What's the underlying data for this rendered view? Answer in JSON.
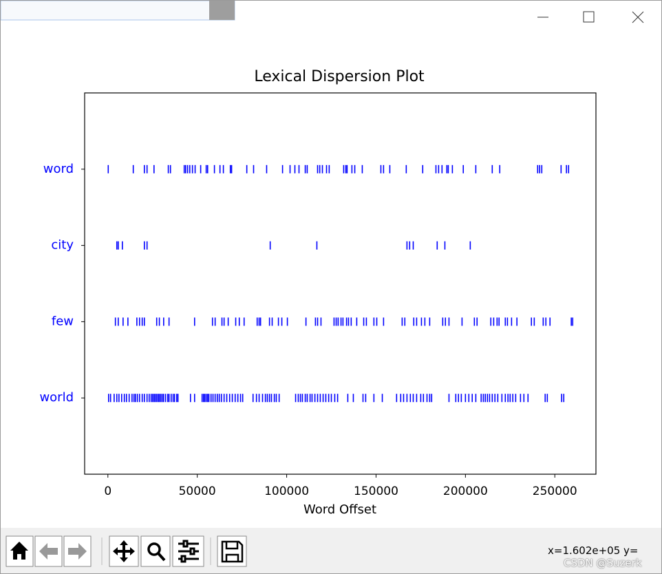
{
  "chart_data": {
    "type": "dispersion",
    "title": "Lexical Dispersion Plot",
    "xlabel": "Word Offset",
    "xlim": [
      -13000,
      273000
    ],
    "xticks": [
      0,
      50000,
      100000,
      150000,
      200000,
      250000
    ],
    "series": [
      {
        "name": "word",
        "color": "#0000ff",
        "values": [
          200,
          14200,
          20400,
          21900,
          25800,
          33800,
          35000,
          42700,
          43500,
          44600,
          45800,
          47300,
          48800,
          51900,
          55000,
          55800,
          59600,
          62700,
          64600,
          68500,
          69200,
          77700,
          81500,
          88800,
          97700,
          101900,
          104600,
          106900,
          110400,
          111500,
          117300,
          118500,
          120000,
          122300,
          123800,
          131900,
          133100,
          133800,
          136500,
          138100,
          142300,
          152700,
          154200,
          157700,
          166900,
          176100,
          183500,
          185000,
          186900,
          189600,
          190400,
          192700,
          198800,
          205800,
          215000,
          219200,
          240400,
          241500,
          242700,
          253500,
          256500,
          257700
        ]
      },
      {
        "name": "city",
        "color": "#0000ff",
        "values": [
          5000,
          5800,
          8100,
          20400,
          21900,
          90800,
          116900,
          167300,
          168800,
          170800,
          184200,
          188500,
          202700
        ]
      },
      {
        "name": "few",
        "color": "#0000ff",
        "values": [
          4200,
          5800,
          8500,
          11200,
          16200,
          17700,
          19200,
          20400,
          27300,
          28800,
          31200,
          34200,
          48500,
          58500,
          60000,
          63800,
          65000,
          67300,
          71500,
          73500,
          76200,
          83500,
          84600,
          85400,
          90400,
          91900,
          95400,
          97300,
          100400,
          110800,
          116100,
          117300,
          119200,
          126500,
          127700,
          128800,
          130400,
          131500,
          133500,
          134600,
          136100,
          139200,
          143100,
          144600,
          148800,
          150400,
          154200,
          164600,
          166100,
          171100,
          172700,
          175400,
          177300,
          180000,
          187300,
          188800,
          190800,
          198100,
          205000,
          206500,
          214200,
          215800,
          217700,
          218800,
          222300,
          223500,
          225800,
          228800,
          236900,
          238500,
          243500,
          245000,
          247300,
          259200,
          260000
        ]
      },
      {
        "name": "world",
        "color": "#0000ff",
        "values": [
          400,
          1500,
          3500,
          5000,
          6200,
          7700,
          9200,
          10400,
          11900,
          13500,
          14600,
          15400,
          16500,
          17700,
          19200,
          20400,
          21900,
          23100,
          24200,
          25000,
          25800,
          26500,
          27300,
          28100,
          28800,
          29600,
          30400,
          31200,
          32300,
          33500,
          34200,
          35400,
          36500,
          37300,
          38500,
          39200,
          46200,
          48500,
          52700,
          53500,
          54200,
          55000,
          55800,
          56500,
          57700,
          58800,
          60000,
          61200,
          62300,
          63500,
          65000,
          66500,
          68100,
          69600,
          71200,
          72700,
          74200,
          75400,
          81200,
          83100,
          84600,
          86500,
          88100,
          89200,
          90400,
          91500,
          93100,
          94200,
          95800,
          105000,
          106500,
          107700,
          108800,
          110400,
          111500,
          113100,
          114200,
          115800,
          117300,
          118800,
          120400,
          121900,
          123500,
          125000,
          126900,
          128500,
          134200,
          137300,
          142700,
          144200,
          148800,
          153500,
          161500,
          163800,
          165400,
          167300,
          169200,
          170800,
          172700,
          175000,
          176500,
          178500,
          180000,
          181100,
          190800,
          194600,
          196100,
          197700,
          200000,
          201900,
          203800,
          205800,
          208800,
          210000,
          211100,
          212300,
          213500,
          215000,
          216500,
          218100,
          220400,
          222300,
          223800,
          225000,
          226500,
          228100,
          230800,
          232700,
          235000,
          244600,
          245800,
          253800,
          255000
        ]
      }
    ]
  },
  "status": "x=1.602e+05 y=",
  "watermark": "CSDN @Suzerk"
}
